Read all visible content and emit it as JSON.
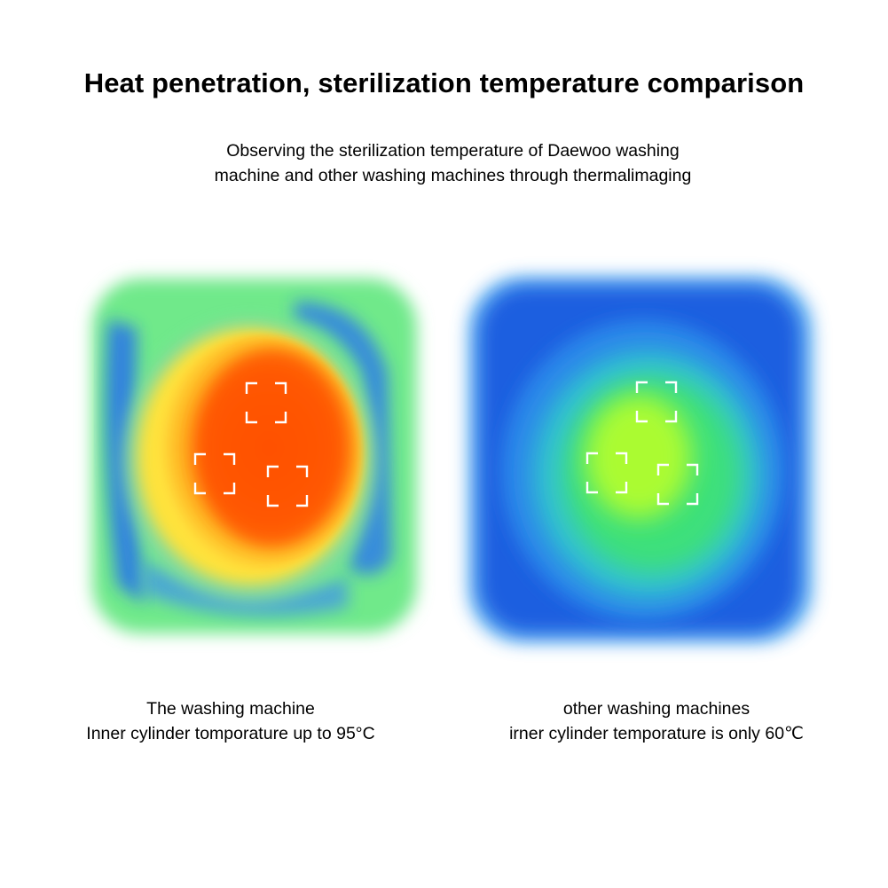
{
  "title": "Heat penetration, sterilization temperature comparison",
  "subtitle": {
    "line1": "Observing the sterilization temperature of Daewoo washing",
    "line2": "machine and other washing machines through thermalimaging"
  },
  "left_panel": {
    "caption_line1": "The washing machine",
    "caption_line2": "Inner cylinder tomporature up to 95°C"
  },
  "right_panel": {
    "caption_line1": "other washing machines",
    "caption_line2": "irner cylinder temporature is only 60℃"
  },
  "colors": {
    "hot_core": "#ff5a00",
    "warm": "#ffd000",
    "cool_green": "#5fe07a",
    "cold_blue": "#1e64e0",
    "mid_green_yellow": "#b8ff2a"
  }
}
